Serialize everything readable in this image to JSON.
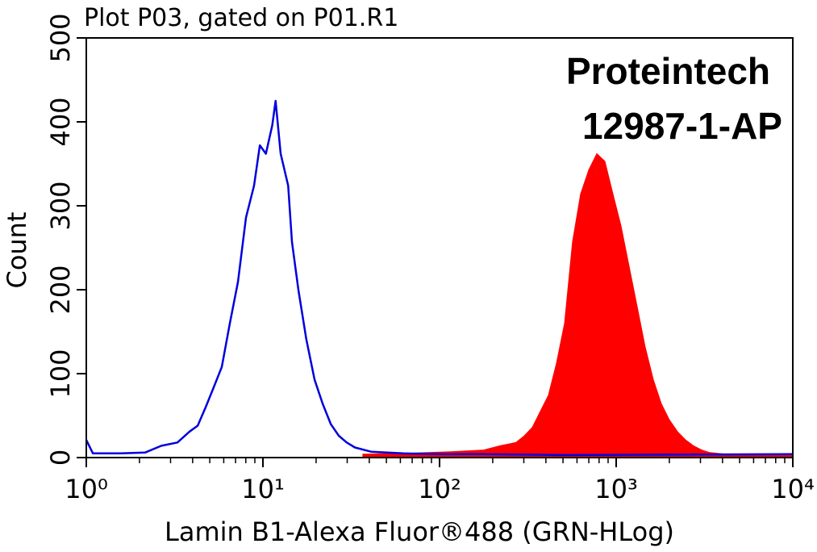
{
  "chart_data": {
    "type": "flow-histogram",
    "title": "Plot P03, gated on P01.R1",
    "xlabel": "Lamin B1-Alexa Fluor®488 (GRN-HLog)",
    "ylabel": "Count",
    "annotations": [
      "Proteintech",
      "12987-1-AP"
    ],
    "xscale": "log",
    "xlim": [
      1,
      10000
    ],
    "ylim": [
      0,
      500
    ],
    "xticks": [
      {
        "value": 1,
        "label": "10⁰"
      },
      {
        "value": 10,
        "label": "10¹"
      },
      {
        "value": 100,
        "label": "10²"
      },
      {
        "value": 1000,
        "label": "10³"
      },
      {
        "value": 10000,
        "label": "10⁴"
      }
    ],
    "xminorticks": [
      2,
      3,
      4,
      5,
      6,
      7,
      8,
      9,
      20,
      30,
      40,
      50,
      60,
      70,
      80,
      90,
      200,
      300,
      400,
      500,
      600,
      700,
      800,
      900,
      2000,
      3000,
      4000,
      5000,
      6000,
      7000,
      8000,
      9000
    ],
    "yticks": [
      0,
      100,
      200,
      300,
      400,
      500
    ],
    "series": [
      {
        "style": "area",
        "color": "#ff0000",
        "x": [
          36.8,
          62.3,
          117,
          178,
          220,
          271,
          302,
          335,
          372,
          413,
          459,
          510,
          566,
          629,
          700,
          777,
          863,
          959,
          1065,
          1183,
          1314,
          1459,
          1622,
          1802,
          2000,
          2223,
          2472,
          2742,
          3048,
          3388,
          4178,
          10000
        ],
        "values": [
          4,
          5,
          7,
          9,
          14,
          18,
          26,
          36,
          55,
          74,
          112,
          160,
          257,
          314,
          343,
          362,
          353,
          314,
          276,
          228,
          180,
          132,
          93,
          64,
          45,
          31,
          21,
          14,
          9,
          6,
          4,
          3
        ]
      },
      {
        "style": "line",
        "color": "#0000dd",
        "x": [
          1,
          1.09,
          1.57,
          2.15,
          2.66,
          3.28,
          3.84,
          4.27,
          4.74,
          5.27,
          5.85,
          6.5,
          7.22,
          8.02,
          8.91,
          9.61,
          10.4,
          11.3,
          11.8,
          12.6,
          13.9,
          14.6,
          15.9,
          17.6,
          19.6,
          21.8,
          24.2,
          26.9,
          29.8,
          33.2,
          40.9,
          62.3,
          105,
          178,
          510,
          10000
        ],
        "values": [
          21,
          5,
          5,
          6,
          14,
          18,
          31,
          38,
          60,
          84,
          108,
          160,
          209,
          286,
          324,
          372,
          362,
          396,
          425,
          362,
          324,
          257,
          199,
          141,
          93,
          64,
          40,
          26,
          18,
          12,
          7,
          5,
          4,
          4,
          3,
          4
        ]
      }
    ]
  }
}
